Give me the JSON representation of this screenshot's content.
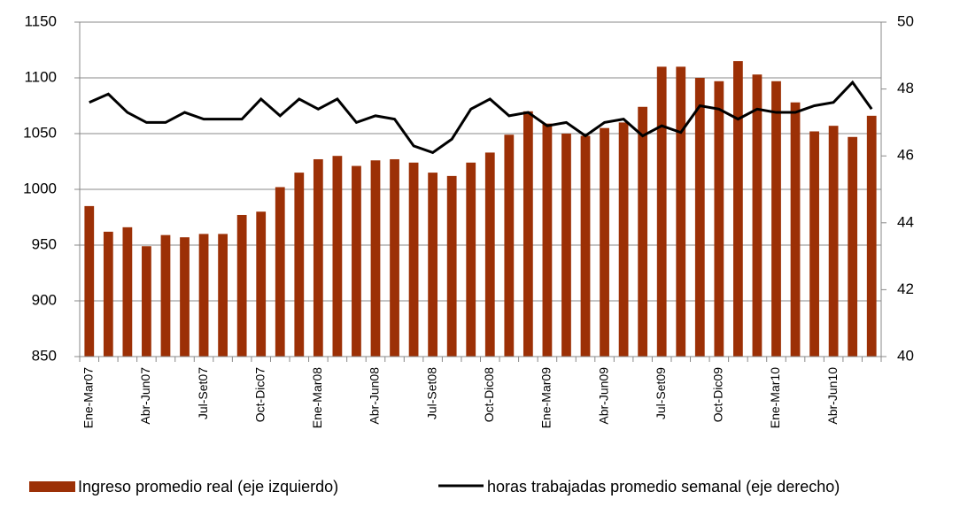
{
  "chart_data": {
    "type": "bar-line",
    "categories": [
      "Ene-Mar07",
      null,
      null,
      "Abr-Jun07",
      null,
      null,
      "Jul-Set07",
      null,
      null,
      "Oct-Dic07",
      null,
      null,
      "Ene-Mar08",
      null,
      null,
      "Abr-Jun08",
      null,
      null,
      "Jul-Set08",
      null,
      null,
      "Oct-Dic08",
      null,
      null,
      "Ene-Mar09",
      null,
      null,
      "Abr-Jun09",
      null,
      null,
      "Jul-Set09",
      null,
      null,
      "Oct-Dic09",
      null,
      null,
      "Ene-Mar10",
      null,
      null,
      "Abr-Jun10",
      null,
      null
    ],
    "series": [
      {
        "name": "Ingreso promedio real (eje izquierdo)",
        "color": "#9c3006",
        "type": "bar",
        "values": [
          985,
          962,
          966,
          949,
          959,
          957,
          960,
          960,
          977,
          980,
          1002,
          1015,
          1027,
          1030,
          1021,
          1026,
          1027,
          1024,
          1015,
          1012,
          1024,
          1033,
          1049,
          1070,
          1059,
          1050,
          1048,
          1055,
          1060,
          1074,
          1110,
          1110,
          1100,
          1097,
          1115,
          1103,
          1097,
          1078,
          1052,
          1057,
          1047,
          1066
        ]
      },
      {
        "name": "horas trabajadas  promedio semanal  (eje derecho)",
        "color": "#000000",
        "type": "line",
        "axis": "y2",
        "values": [
          47.6,
          47.85,
          47.3,
          47.0,
          47.0,
          47.3,
          47.1,
          47.1,
          47.1,
          47.7,
          47.2,
          47.7,
          47.4,
          47.7,
          47.0,
          47.2,
          47.1,
          46.3,
          46.1,
          46.5,
          47.4,
          47.7,
          47.2,
          47.3,
          46.9,
          47.0,
          46.6,
          47.0,
          47.1,
          46.6,
          46.9,
          46.7,
          47.5,
          47.4,
          47.1,
          47.4,
          47.3,
          47.3,
          47.5,
          47.6,
          48.2,
          47.4
        ]
      }
    ],
    "ylim": [
      850,
      1150
    ],
    "yticks": [
      850,
      900,
      950,
      1000,
      1050,
      1100,
      1150
    ],
    "y2lim": [
      40,
      50
    ],
    "y2ticks": [
      40,
      42,
      44,
      46,
      48,
      50
    ],
    "grid": true,
    "legend": "bottom"
  }
}
